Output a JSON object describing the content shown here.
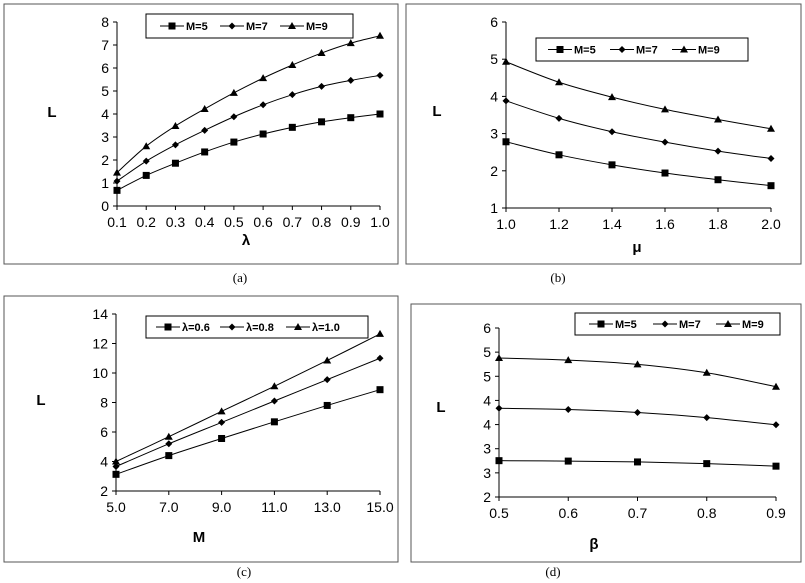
{
  "chart_data": [
    {
      "type": "line",
      "panel_label": "(a)",
      "xlabel": "λ",
      "ylabel": "L",
      "x": [
        0.1,
        0.2,
        0.3,
        0.4,
        0.5,
        0.6,
        0.7,
        0.8,
        0.9,
        1.0
      ],
      "x_ticks": [
        "0.1",
        "0.2",
        "0.3",
        "0.4",
        "0.5",
        "0.6",
        "0.7",
        "0.8",
        "0.9",
        "1.0"
      ],
      "xlim": [
        0.1,
        1.0
      ],
      "ylim": [
        0,
        8
      ],
      "y_ticks": [
        "0",
        "1",
        "2",
        "3",
        "4",
        "5",
        "6",
        "7",
        "8"
      ],
      "legend": [
        "M=5",
        "M=7",
        "M=9"
      ],
      "series": [
        {
          "name": "M=5",
          "marker": "square",
          "values": [
            0.68,
            1.33,
            1.86,
            2.35,
            2.78,
            3.13,
            3.42,
            3.66,
            3.84,
            4.0
          ]
        },
        {
          "name": "M=7",
          "marker": "diamond",
          "values": [
            1.08,
            1.95,
            2.66,
            3.29,
            3.88,
            4.4,
            4.84,
            5.2,
            5.46,
            5.68
          ]
        },
        {
          "name": "M=9",
          "marker": "triangle",
          "values": [
            1.45,
            2.6,
            3.48,
            4.22,
            4.92,
            5.56,
            6.13,
            6.65,
            7.08,
            7.4
          ]
        }
      ]
    },
    {
      "type": "line",
      "panel_label": "(b)",
      "xlabel": "μ",
      "ylabel": "L",
      "x": [
        1.0,
        1.2,
        1.4,
        1.6,
        1.8,
        2.0
      ],
      "x_ticks": [
        "1.0",
        "1.2",
        "1.4",
        "1.6",
        "1.8",
        "2.0"
      ],
      "xlim": [
        1.0,
        2.0
      ],
      "ylim": [
        1,
        6
      ],
      "y_ticks": [
        "1",
        "2",
        "3",
        "4",
        "5",
        "6"
      ],
      "legend": [
        "M=5",
        "M=7",
        "M=9"
      ],
      "series": [
        {
          "name": "M=5",
          "marker": "square",
          "values": [
            2.78,
            2.43,
            2.16,
            1.94,
            1.76,
            1.6
          ]
        },
        {
          "name": "M=7",
          "marker": "diamond",
          "values": [
            3.88,
            3.41,
            3.05,
            2.77,
            2.53,
            2.33
          ]
        },
        {
          "name": "M=9",
          "marker": "triangle",
          "values": [
            4.93,
            4.38,
            3.98,
            3.65,
            3.38,
            3.13
          ]
        }
      ]
    },
    {
      "type": "line",
      "panel_label": "(c)",
      "xlabel": "M",
      "ylabel": "L",
      "x": [
        5,
        7,
        9,
        11,
        13,
        15
      ],
      "x_ticks": [
        "5.0",
        "7.0",
        "9.0",
        "11.0",
        "13.0",
        "15.0"
      ],
      "xlim": [
        5,
        15
      ],
      "ylim": [
        2,
        14
      ],
      "y_ticks": [
        "2",
        "4",
        "6",
        "8",
        "10",
        "12",
        "14"
      ],
      "legend": [
        "λ=0.6",
        "λ=0.8",
        "λ=1.0"
      ],
      "series": [
        {
          "name": "λ=0.6",
          "marker": "square",
          "values": [
            3.13,
            4.4,
            5.56,
            6.69,
            7.8,
            8.87
          ]
        },
        {
          "name": "λ=0.8",
          "marker": "diamond",
          "values": [
            3.66,
            5.2,
            6.65,
            8.1,
            9.55,
            11.0
          ]
        },
        {
          "name": "λ=1.0",
          "marker": "triangle",
          "values": [
            4.0,
            5.68,
            7.4,
            9.1,
            10.85,
            12.65
          ]
        }
      ]
    },
    {
      "type": "line",
      "panel_label": "(d)",
      "xlabel": "β",
      "ylabel": "L",
      "x": [
        0.5,
        0.6,
        0.7,
        0.8,
        0.9
      ],
      "x_ticks": [
        "0.5",
        "0.6",
        "0.7",
        "0.8",
        "0.9"
      ],
      "xlim": [
        0.5,
        0.9
      ],
      "ylim": [
        2,
        6
      ],
      "y_ticks": [
        "2",
        "3",
        "3",
        "4",
        "4",
        "5",
        "5",
        "6"
      ],
      "legend": [
        "M=5",
        "M=7",
        "M=9"
      ],
      "series": [
        {
          "name": "M=5",
          "marker": "square",
          "values": [
            2.86,
            2.85,
            2.83,
            2.79,
            2.73
          ]
        },
        {
          "name": "M=7",
          "marker": "diamond",
          "values": [
            4.1,
            4.07,
            4.0,
            3.88,
            3.71
          ]
        },
        {
          "name": "M=9",
          "marker": "triangle",
          "values": [
            5.29,
            5.24,
            5.14,
            4.94,
            4.61
          ]
        }
      ]
    }
  ]
}
